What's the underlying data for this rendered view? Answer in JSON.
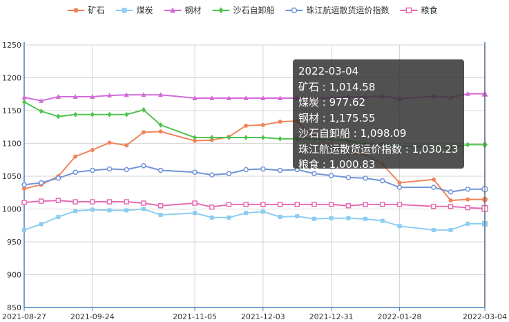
{
  "chart_data": {
    "type": "line",
    "x": [
      "2021-08-27",
      "2021-09-03",
      "2021-09-10",
      "2021-09-17",
      "2021-09-24",
      "2021-10-01",
      "2021-10-08",
      "2021-10-15",
      "2021-10-22",
      "2021-11-05",
      "2021-11-12",
      "2021-11-19",
      "2021-11-26",
      "2021-12-03",
      "2021-12-10",
      "2021-12-17",
      "2021-12-24",
      "2021-12-31",
      "2022-01-07",
      "2022-01-14",
      "2022-01-21",
      "2022-01-28",
      "2022-02-11",
      "2022-02-18",
      "2022-02-25",
      "2022-03-04"
    ],
    "xticks": [
      "2021-08-27",
      "2021-09-24",
      "2021-11-05",
      "2021-12-03",
      "2021-12-31",
      "2022-01-28",
      "2022-03-04"
    ],
    "ylim": [
      850,
      1250
    ],
    "yticks": [
      850,
      900,
      950,
      1000,
      1050,
      1100,
      1150,
      1200,
      1250
    ],
    "grid": true,
    "legend": "top",
    "series": [
      {
        "name": "矿石",
        "color": "#f0845b",
        "marker": "circle",
        "values": [
          1031,
          1037,
          1050,
          1080,
          1090,
          1101,
          1097,
          1117,
          1118,
          1104,
          1105,
          1110,
          1127,
          1128,
          1133,
          1134,
          1110,
          1097,
          1085,
          1083,
          1068,
          1040,
          1045,
          1013,
          1014.58,
          1014.58
        ]
      },
      {
        "name": "煤炭",
        "color": "#8dcdf1",
        "marker": "square",
        "values": [
          968,
          977,
          988,
          997,
          999,
          998,
          998,
          1000,
          991,
          994,
          987,
          987,
          994,
          996,
          988,
          989,
          985,
          986,
          986,
          985,
          982,
          974,
          968,
          968,
          977.62,
          977.62
        ]
      },
      {
        "name": "钢材",
        "color": "#d26bd7",
        "marker": "triangle",
        "values": [
          1170,
          1165,
          1171,
          1171,
          1171,
          1173,
          1174,
          1174,
          1174,
          1169,
          1169,
          1169,
          1169,
          1169,
          1169,
          1169,
          1169,
          1169,
          1171,
          1171,
          1172,
          1168,
          1172,
          1170,
          1175.55,
          1175.55
        ]
      },
      {
        "name": "沙石自卸船",
        "color": "#4fc34f",
        "marker": "diamond",
        "values": [
          1163,
          1149,
          1141,
          1144,
          1144,
          1144,
          1144,
          1151,
          1128,
          1109,
          1109,
          1109,
          1109,
          1109,
          1107,
          1107,
          1107,
          1106,
          1104,
          1099,
          1099,
          1096,
          1094,
          1093,
          1098.09,
          1098.09
        ]
      },
      {
        "name": "珠江航运散货运价指数",
        "color": "#6f93d9",
        "marker": "emptyCircle",
        "values": [
          1037,
          1040,
          1047,
          1056,
          1059,
          1061,
          1060,
          1066,
          1059,
          1056,
          1052,
          1054,
          1060,
          1061,
          1059,
          1060,
          1054,
          1051,
          1048,
          1047,
          1043,
          1033,
          1033,
          1026,
          1030.23,
          1030.23
        ]
      },
      {
        "name": "粮食",
        "color": "#e66ab2",
        "marker": "emptyRect",
        "values": [
          1010,
          1012,
          1013,
          1011,
          1011,
          1011,
          1011,
          1009,
          1005,
          1009,
          1003,
          1007,
          1007,
          1007,
          1007,
          1007,
          1007,
          1007,
          1005,
          1007,
          1007,
          1007,
          1004,
          1004,
          1002,
          1000.83
        ]
      }
    ]
  },
  "tooltip": {
    "date": "2022-03-04",
    "rows": [
      "矿石 : 1,014.58",
      "煤炭 : 977.62",
      "钢材 : 1,175.55",
      "沙石自卸船 : 1,098.09",
      "珠江航运散货运价指数 : 1,030.23",
      "粮食 : 1,000.83"
    ]
  }
}
